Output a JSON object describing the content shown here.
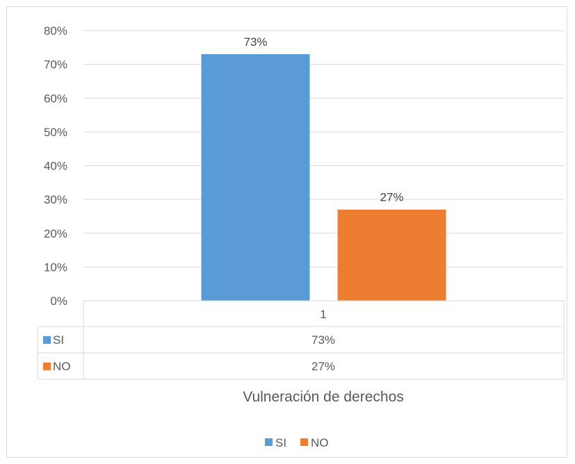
{
  "chart_data": {
    "type": "bar",
    "categories": [
      "1"
    ],
    "series": [
      {
        "name": "SI",
        "values": [
          0.73
        ],
        "color": "#5b9bd5",
        "label": "73%"
      },
      {
        "name": "NO",
        "values": [
          0.27
        ],
        "color": "#ed7d31",
        "label": "27%"
      }
    ],
    "title": "",
    "xlabel": "Vulneración de derechos",
    "ylabel": "",
    "ylim": [
      0,
      0.8
    ],
    "yticks": [
      "0%",
      "10%",
      "20%",
      "30%",
      "40%",
      "50%",
      "60%",
      "70%",
      "80%"
    ],
    "grid": true,
    "data_table": {
      "header": "1",
      "rows": [
        {
          "series": "SI",
          "value": "73%"
        },
        {
          "series": "NO",
          "value": "27%"
        }
      ]
    },
    "legend": {
      "position": "bottom",
      "entries": [
        "SI",
        "NO"
      ]
    }
  }
}
